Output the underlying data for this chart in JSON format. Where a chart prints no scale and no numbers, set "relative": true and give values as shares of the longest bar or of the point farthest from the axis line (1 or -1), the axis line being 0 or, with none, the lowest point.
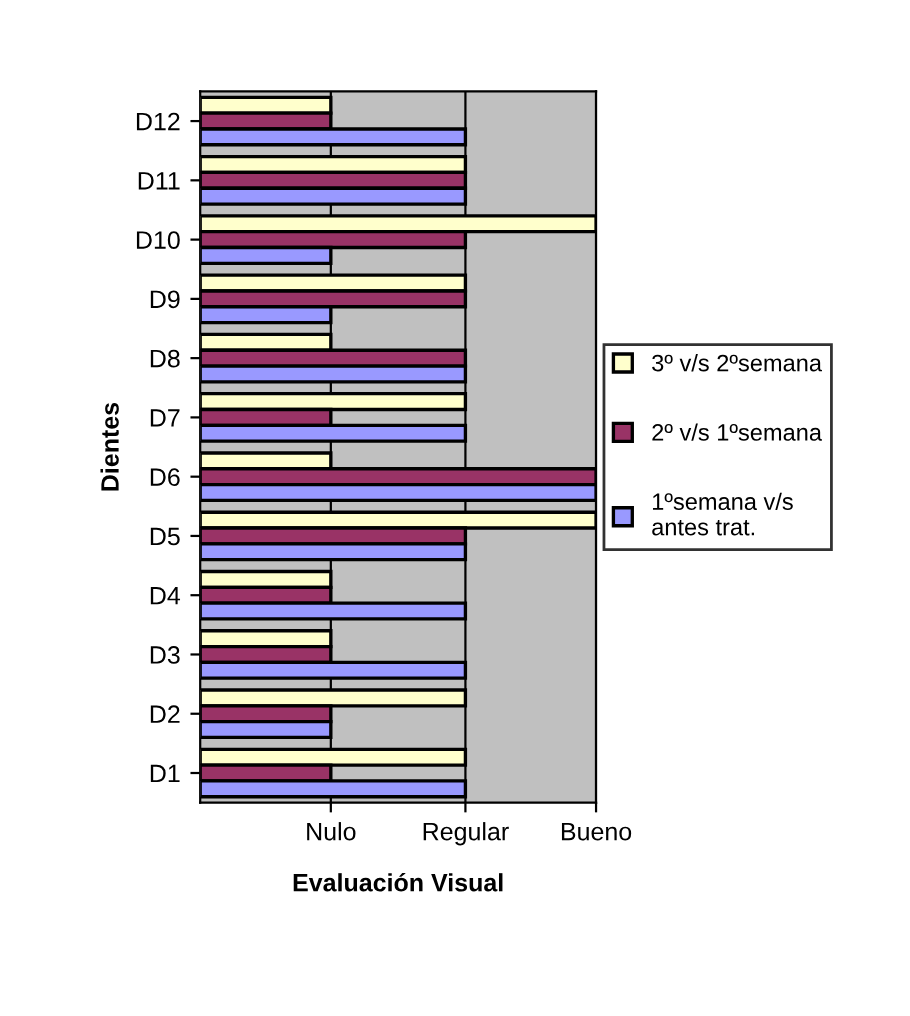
{
  "chart_data": {
    "type": "bar",
    "orientation": "horizontal",
    "relative": true,
    "xlabel": "Evaluación Visual",
    "ylabel": "Dientes",
    "categories": [
      "D12",
      "D11",
      "D10",
      "D9",
      "D8",
      "D7",
      "D6",
      "D5",
      "D4",
      "D3",
      "D2",
      "D1"
    ],
    "series": [
      {
        "name": "3º v/s 2ºsemana",
        "color": "#ffffcc",
        "values": [
          0.33,
          0.67,
          1,
          0.67,
          0.33,
          0.67,
          0.33,
          1,
          0.33,
          0.33,
          0.67,
          0.67
        ]
      },
      {
        "name": "2º v/s 1ºsemana",
        "color": "#993366",
        "values": [
          0.33,
          0.67,
          0.67,
          0.67,
          0.67,
          0.33,
          1,
          0.67,
          0.33,
          0.33,
          0.33,
          0.33
        ]
      },
      {
        "name": "1ºsemana v/s\nantes trat.",
        "color": "#9999ff",
        "values": [
          0.67,
          0.67,
          0.33,
          0.33,
          0.67,
          0.67,
          1,
          0.67,
          0.67,
          0.67,
          0.33,
          0.67
        ]
      }
    ],
    "annotations": [
      {
        "text": "Nulo",
        "x": 0.33
      },
      {
        "text": "Regular",
        "x": 0.67
      },
      {
        "text": "Bueno",
        "x": 1
      }
    ],
    "grid": "x",
    "legend": "right"
  }
}
